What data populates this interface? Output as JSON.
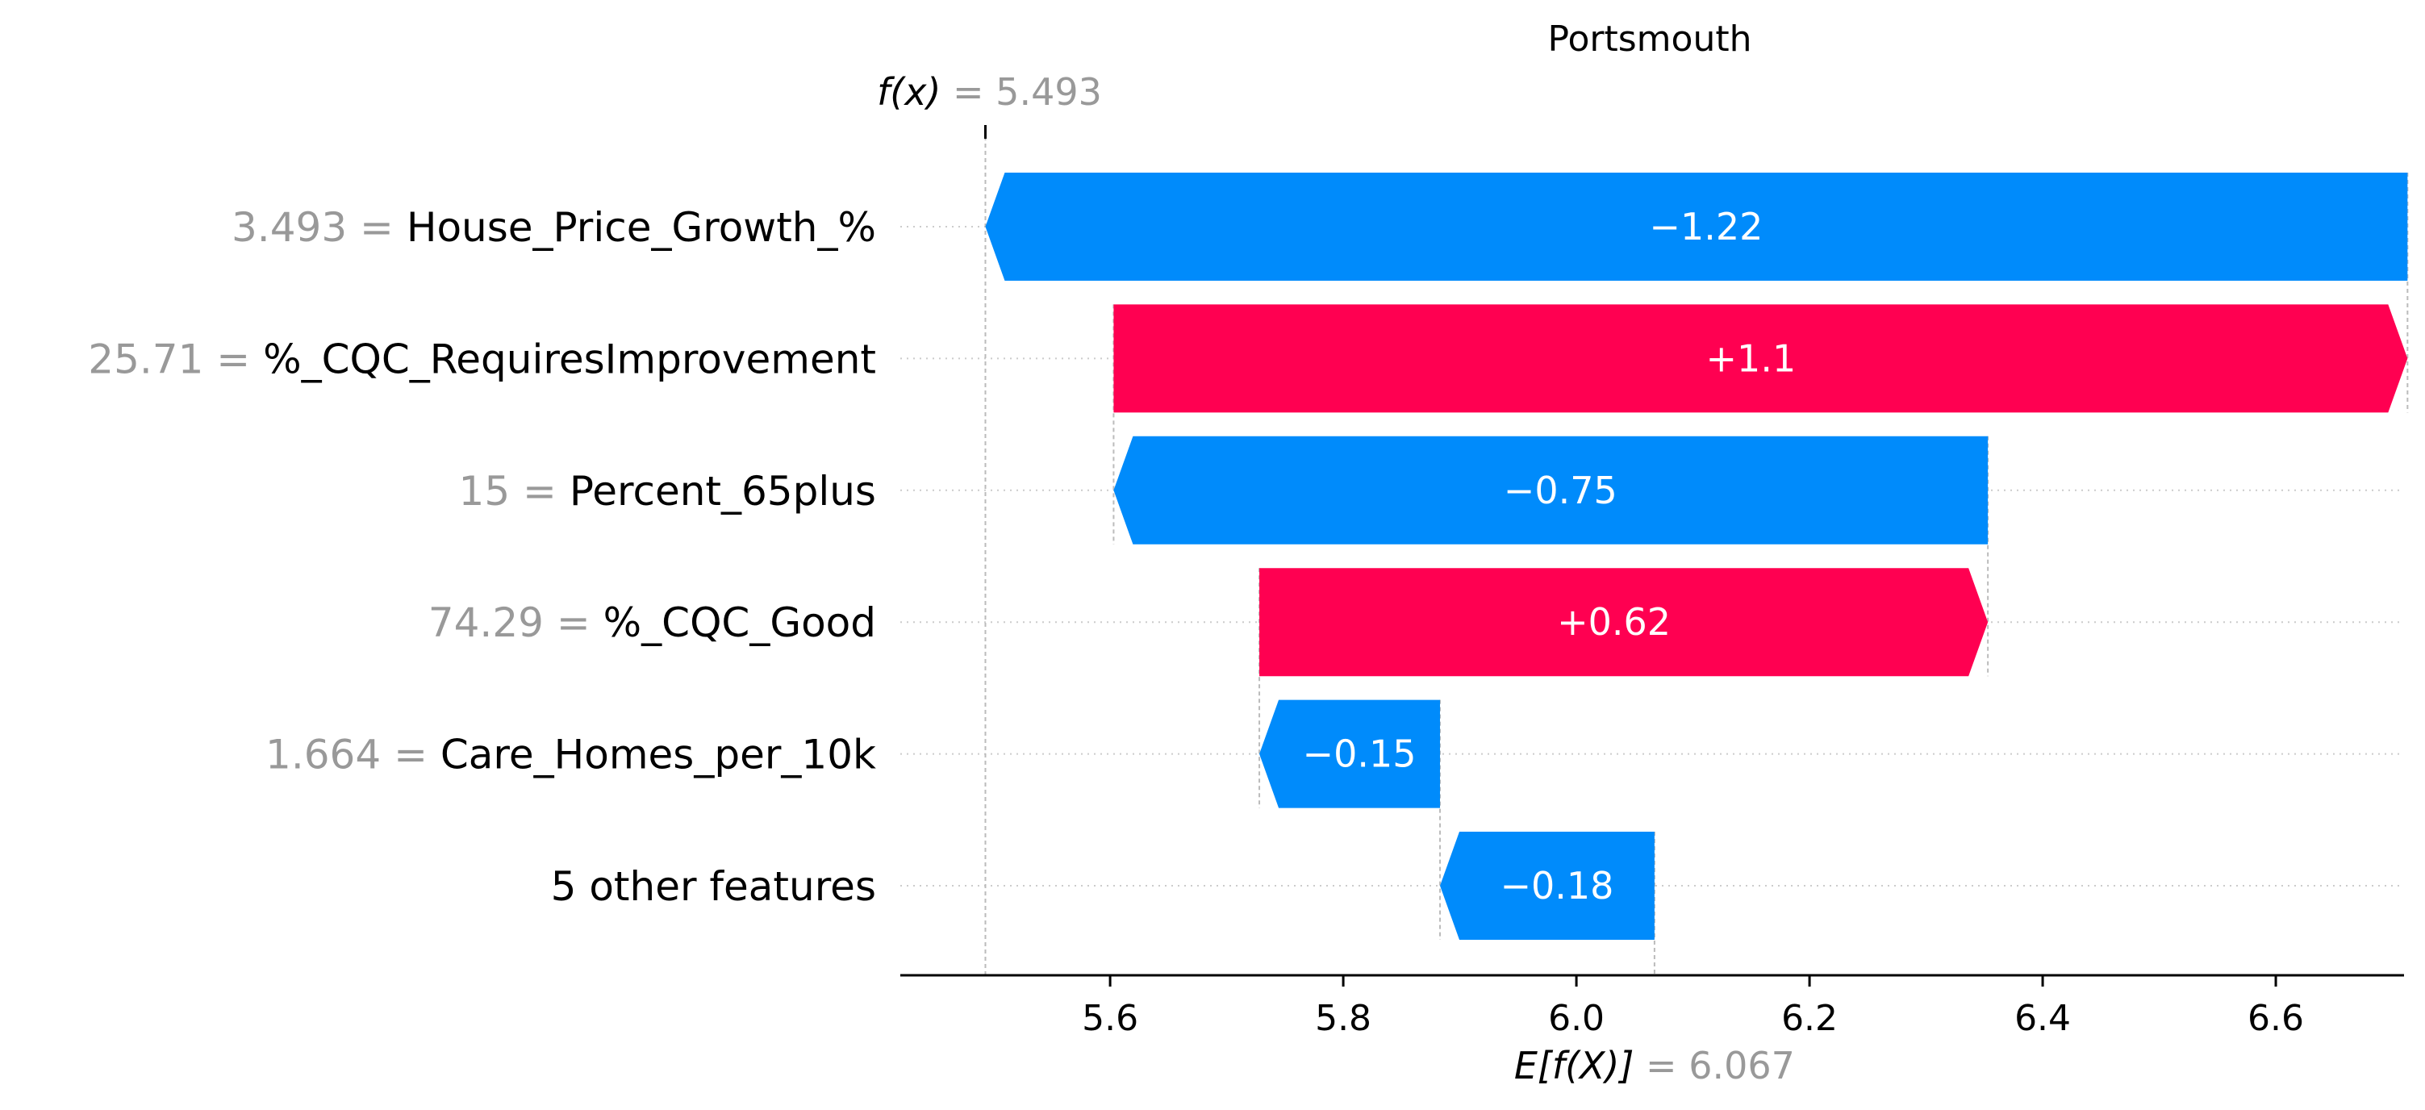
{
  "chart_data": {
    "type": "waterfall",
    "title": "Portsmouth",
    "f_x": {
      "label": "f(x)",
      "value_text": "= 5.493",
      "value": 5.493
    },
    "expected_value": {
      "label": "E[f(X)]",
      "value_text": "= 6.067",
      "value": 6.067
    },
    "xlim": [
      5.42,
      6.71
    ],
    "x_ticks": [
      5.6,
      5.8,
      6.0,
      6.2,
      6.4,
      6.6
    ],
    "x_tick_labels": [
      "5.6",
      "5.8",
      "6.0",
      "6.2",
      "6.4",
      "6.6"
    ],
    "colors": {
      "positive": "#ff0051",
      "negative": "#008bfb",
      "muted_text": "#999999"
    },
    "features": [
      {
        "value_text": "3.493 =",
        "name": "House_Price_Growth_%",
        "shap": -1.22,
        "label": "−1.22",
        "start": 6.713,
        "end": 5.493
      },
      {
        "value_text": "25.71 =",
        "name": "%_CQC_RequiresImprovement",
        "shap": 1.1,
        "label": "+1.1",
        "start": 5.603,
        "end": 6.713
      },
      {
        "value_text": "15 =",
        "name": "Percent_65plus",
        "shap": -0.75,
        "label": "−0.75",
        "start": 6.353,
        "end": 5.603
      },
      {
        "value_text": "74.29 =",
        "name": "%_CQC_Good",
        "shap": 0.62,
        "label": "+0.62",
        "start": 5.728,
        "end": 6.353
      },
      {
        "value_text": "1.664 =",
        "name": "Care_Homes_per_10k",
        "shap": -0.15,
        "label": "−0.15",
        "start": 5.883,
        "end": 5.728
      },
      {
        "value_text": "",
        "name": "5 other features",
        "shap": -0.18,
        "label": "−0.18",
        "start": 6.067,
        "end": 5.883
      }
    ]
  }
}
